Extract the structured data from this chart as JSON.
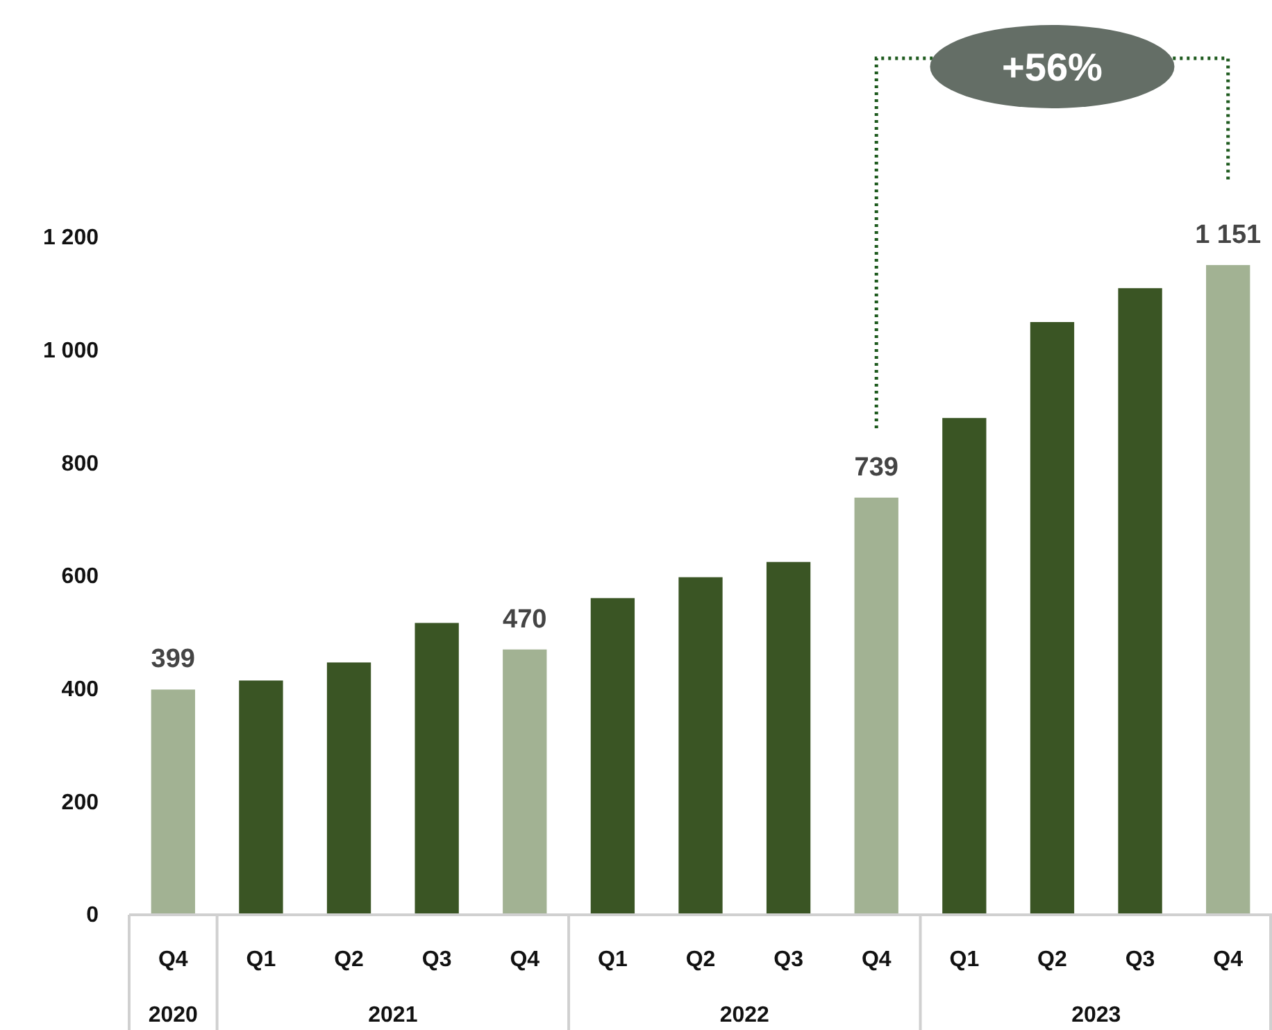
{
  "chart_data": {
    "type": "bar",
    "categories": [
      "Q4",
      "Q1",
      "Q2",
      "Q3",
      "Q4",
      "Q1",
      "Q2",
      "Q3",
      "Q4",
      "Q1",
      "Q2",
      "Q3",
      "Q4"
    ],
    "values": [
      399,
      415,
      447,
      517,
      470,
      561,
      598,
      625,
      739,
      880,
      1050,
      1110,
      1151
    ],
    "colors": [
      "#a2b293",
      "#3a5524",
      "#3a5524",
      "#3a5524",
      "#a2b293",
      "#3a5524",
      "#3a5524",
      "#3a5524",
      "#a2b293",
      "#3a5524",
      "#3a5524",
      "#3a5524",
      "#a2b293"
    ],
    "value_labels": [
      "399",
      null,
      null,
      null,
      "470",
      null,
      null,
      null,
      "739",
      null,
      null,
      null,
      "1 151"
    ],
    "ylim": [
      0,
      1200
    ],
    "yticks": [
      0,
      200,
      400,
      600,
      800,
      {
        "value": 1000,
        "label": "1 000"
      },
      {
        "value": 1200,
        "label": "1 200"
      }
    ],
    "annotations": [
      "2020",
      "2021",
      "2022",
      "2023",
      "+56%"
    ],
    "grid": false
  }
}
